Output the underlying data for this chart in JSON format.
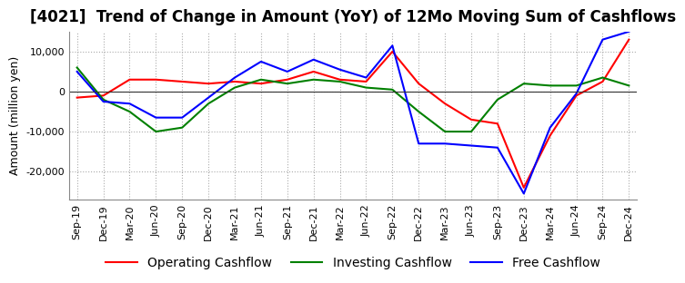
{
  "title": "[4021]  Trend of Change in Amount (YoY) of 12Mo Moving Sum of Cashflows",
  "ylabel": "Amount (million yen)",
  "x_labels": [
    "Sep-19",
    "Dec-19",
    "Mar-20",
    "Jun-20",
    "Sep-20",
    "Dec-20",
    "Mar-21",
    "Jun-21",
    "Sep-21",
    "Dec-21",
    "Mar-22",
    "Jun-22",
    "Sep-22",
    "Dec-22",
    "Mar-23",
    "Jun-23",
    "Sep-23",
    "Dec-23",
    "Mar-24",
    "Jun-24",
    "Sep-24",
    "Dec-24"
  ],
  "operating": [
    -1500,
    -1000,
    3000,
    3000,
    2500,
    2000,
    2500,
    2000,
    3000,
    5000,
    3000,
    2500,
    10000,
    2000,
    -3000,
    -7000,
    -8000,
    -24000,
    -11000,
    -1000,
    2500,
    13000
  ],
  "investing": [
    6000,
    -2000,
    -5000,
    -10000,
    -9000,
    -3000,
    1000,
    3000,
    2000,
    3000,
    2500,
    1000,
    500,
    -5000,
    -10000,
    -10000,
    -2000,
    2000,
    1500,
    1500,
    3500,
    1500
  ],
  "free": [
    5000,
    -2500,
    -3000,
    -6500,
    -6500,
    -1500,
    3500,
    7500,
    5000,
    8000,
    5500,
    3500,
    11500,
    -13000,
    -13000,
    -13500,
    -14000,
    -25500,
    -9000,
    -500,
    13000,
    15000
  ],
  "ylim": [
    -27000,
    15000
  ],
  "yticks": [
    -20000,
    -10000,
    0,
    10000
  ],
  "colors": {
    "operating": "#ff0000",
    "investing": "#008000",
    "free": "#0000ff"
  },
  "legend_labels": [
    "Operating Cashflow",
    "Investing Cashflow",
    "Free Cashflow"
  ],
  "grid_color": "#aaaaaa",
  "background_color": "#ffffff",
  "title_fontsize": 12,
  "label_fontsize": 9,
  "tick_fontsize": 8
}
